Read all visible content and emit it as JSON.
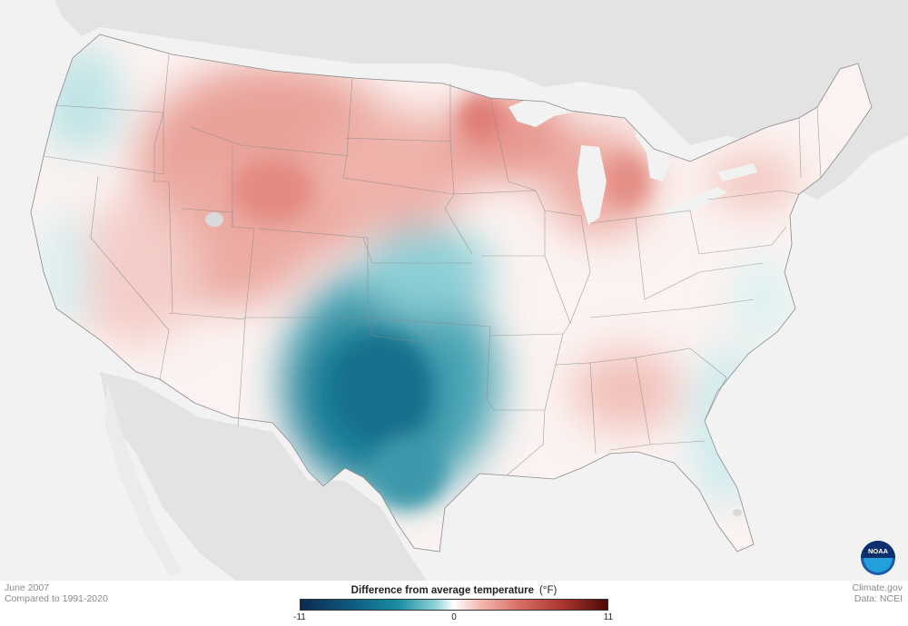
{
  "caption": {
    "date": "June 2007",
    "baseline": "Compared to 1991-2020"
  },
  "credits": {
    "site": "Climate.gov",
    "data": "Data: NCEI"
  },
  "legend": {
    "title": "Difference from average temperature",
    "unit": "(°F)",
    "min_label": "-11",
    "mid_label": "0",
    "max_label": "11",
    "range": [
      -11,
      11
    ],
    "colors": {
      "cold_extreme": "#0b2a52",
      "cold": "#1a8fa3",
      "neutral": "#ffffff",
      "warm": "#d76a60",
      "warm_extreme": "#4a0b08"
    }
  },
  "logo": {
    "text": "NOAA"
  },
  "map": {
    "region": "Contiguous United States",
    "colors": {
      "land_background": "#e3e3e3",
      "water": "#f2f2f2",
      "state_border": "#8a8a8a"
    }
  }
}
